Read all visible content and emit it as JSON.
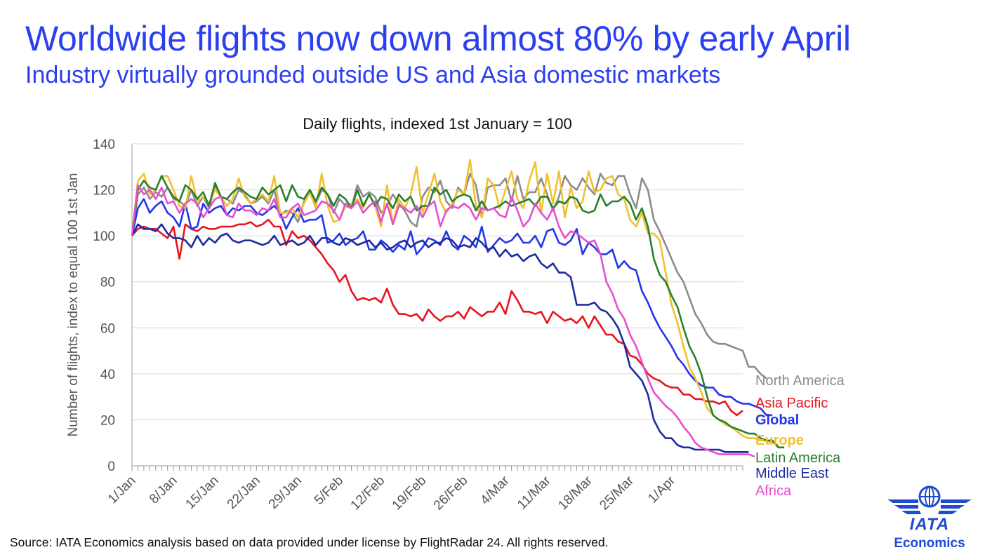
{
  "header": {
    "title": "Worldwide flights now down almost 80% by early April",
    "subtitle": "Industry virtually grounded outside US and Asia domestic markets"
  },
  "footer": {
    "source": "Source: IATA Economics analysis based on data provided under license by FlightRadar 24. All rights reserved."
  },
  "logo": {
    "name": "IATA",
    "sub": "Economics",
    "color": "#1f4bd1"
  },
  "chart_data": {
    "type": "line",
    "title": "Daily flights, indexed 1st January = 100",
    "xlabel": "",
    "ylabel": "Number of flights, index to equal 100 1st Jan",
    "ylim": [
      0,
      140
    ],
    "yticks": [
      0,
      20,
      40,
      60,
      80,
      100,
      120,
      140
    ],
    "grid": true,
    "legend": "right, labels at line ends",
    "x_tick_labels": [
      "1/Jan",
      "8/Jan",
      "15/Jan",
      "22/Jan",
      "29/Jan",
      "5/Feb",
      "12/Feb",
      "19/Feb",
      "26/Feb",
      "4/Mar",
      "11/Mar",
      "18/Mar",
      "25/Mar",
      "1/Apr"
    ],
    "x_start": "1 Jan",
    "x_days": 104,
    "series": [
      {
        "name": "North America",
        "color": "#8c8c8c",
        "values": [
          100,
          118,
          121,
          116,
          119,
          117,
          121,
          116,
          115,
          113,
          120,
          113,
          117,
          112,
          122,
          117,
          116,
          114,
          120,
          118,
          114,
          115,
          117,
          114,
          120,
          109,
          111,
          110,
          106,
          115,
          119,
          114,
          120,
          118,
          110,
          116,
          113,
          112,
          122,
          117,
          119,
          117,
          110,
          113,
          118,
          114,
          111,
          106,
          104,
          117,
          121,
          119,
          124,
          115,
          112,
          121,
          118,
          127,
          122,
          108,
          121,
          122,
          122,
          125,
          115,
          126,
          116,
          119,
          119,
          125,
          118,
          111,
          117,
          126,
          122,
          120,
          125,
          121,
          118,
          127,
          123,
          122,
          126,
          126,
          118,
          112,
          125,
          120,
          107,
          102,
          96,
          90,
          84,
          80,
          73,
          66,
          62,
          57,
          54,
          53,
          53,
          52,
          51,
          50,
          43,
          43,
          40,
          38
        ]
      },
      {
        "name": "Asia Pacific",
        "color": "#e8141e",
        "values": [
          100,
          103,
          104,
          103,
          103,
          101,
          99,
          104,
          90,
          105,
          103,
          102,
          104,
          103,
          103,
          104,
          104,
          104,
          105,
          105,
          106,
          104,
          105,
          107,
          104,
          104,
          96,
          102,
          99,
          100,
          98,
          95,
          92,
          88,
          85,
          80,
          83,
          76,
          72,
          73,
          72,
          73,
          71,
          77,
          70,
          66,
          66,
          65,
          66,
          63,
          68,
          65,
          63,
          65,
          65,
          67,
          64,
          69,
          67,
          65,
          67,
          67,
          71,
          66,
          76,
          72,
          67,
          67,
          66,
          67,
          62,
          67,
          65,
          63,
          64,
          62,
          65,
          60,
          65,
          61,
          57,
          57,
          54,
          53,
          48,
          47,
          44,
          40,
          38,
          37,
          35,
          34,
          34,
          31,
          31,
          29,
          29,
          28,
          28,
          27,
          28,
          24,
          22,
          24
        ]
      },
      {
        "name": "Global",
        "color": "#2436e8",
        "values": [
          100,
          112,
          116,
          110,
          113,
          115,
          110,
          108,
          104,
          114,
          103,
          104,
          114,
          110,
          112,
          113,
          109,
          112,
          111,
          113,
          113,
          110,
          109,
          111,
          113,
          110,
          103,
          108,
          112,
          106,
          107,
          107,
          109,
          97,
          98,
          101,
          96,
          98,
          99,
          102,
          94,
          94,
          98,
          96,
          93,
          96,
          94,
          102,
          92,
          95,
          99,
          98,
          96,
          102,
          96,
          94,
          100,
          98,
          95,
          104,
          93,
          96,
          99,
          97,
          98,
          101,
          97,
          97,
          100,
          95,
          102,
          103,
          97,
          96,
          98,
          103,
          92,
          97,
          95,
          92,
          92,
          94,
          86,
          89,
          86,
          85,
          76,
          71,
          65,
          60,
          56,
          52,
          47,
          44,
          40,
          37,
          35,
          34,
          34,
          31,
          30,
          30,
          28,
          27,
          27,
          26,
          25,
          22,
          22
        ]
      },
      {
        "name": "Europe",
        "color": "#f2c12e",
        "values": [
          100,
          124,
          127,
          118,
          120,
          126,
          126,
          120,
          113,
          112,
          126,
          115,
          117,
          114,
          120,
          117,
          113,
          116,
          125,
          117,
          114,
          116,
          118,
          115,
          126,
          110,
          110,
          112,
          108,
          114,
          119,
          112,
          127,
          113,
          106,
          107,
          113,
          114,
          116,
          112,
          118,
          113,
          104,
          122,
          105,
          116,
          112,
          118,
          130,
          110,
          118,
          127,
          115,
          110,
          114,
          120,
          118,
          133,
          113,
          108,
          125,
          122,
          112,
          120,
          128,
          116,
          112,
          124,
          132,
          110,
          127,
          114,
          128,
          108,
          121,
          112,
          115,
          128,
          119,
          120,
          125,
          126,
          118,
          116,
          107,
          104,
          110,
          101,
          101,
          98,
          84,
          70,
          62,
          52,
          43,
          38,
          32,
          25,
          22,
          20,
          18,
          17,
          15,
          13,
          12,
          12,
          11,
          11,
          10,
          9
        ]
      },
      {
        "name": "Latin America",
        "color": "#2a7f2e",
        "values": [
          100,
          120,
          124,
          121,
          120,
          126,
          121,
          117,
          115,
          122,
          120,
          116,
          119,
          113,
          123,
          117,
          116,
          119,
          121,
          119,
          117,
          116,
          121,
          118,
          120,
          122,
          115,
          122,
          117,
          116,
          120,
          115,
          121,
          118,
          113,
          118,
          116,
          112,
          120,
          113,
          118,
          113,
          117,
          116,
          112,
          118,
          115,
          117,
          111,
          113,
          113,
          121,
          118,
          120,
          115,
          117,
          118,
          117,
          111,
          115,
          111,
          112,
          113,
          115,
          113,
          114,
          115,
          116,
          113,
          117,
          117,
          112,
          115,
          114,
          117,
          116,
          111,
          110,
          111,
          118,
          113,
          115,
          115,
          117,
          114,
          107,
          112,
          104,
          90,
          83,
          80,
          74,
          69,
          60,
          52,
          47,
          40,
          30,
          22,
          20,
          19,
          17,
          16,
          15,
          14,
          14,
          12,
          11,
          11,
          8,
          8
        ]
      },
      {
        "name": "Middle East",
        "color": "#1c2aa0",
        "values": [
          100,
          105,
          103,
          103,
          102,
          105,
          101,
          99,
          99,
          98,
          95,
          100,
          96,
          99,
          97,
          100,
          101,
          98,
          97,
          98,
          98,
          97,
          96,
          97,
          100,
          96,
          97,
          98,
          96,
          97,
          100,
          96,
          99,
          99,
          97,
          96,
          99,
          98,
          96,
          97,
          98,
          95,
          97,
          94,
          95,
          97,
          98,
          95,
          97,
          98,
          95,
          97,
          97,
          99,
          98,
          95,
          96,
          95,
          99,
          97,
          94,
          95,
          91,
          94,
          91,
          92,
          89,
          91,
          92,
          88,
          86,
          88,
          84,
          84,
          82,
          70,
          70,
          70,
          71,
          68,
          67,
          64,
          60,
          53,
          43,
          40,
          37,
          31,
          20,
          15,
          12,
          12,
          9,
          8,
          8,
          7,
          7,
          7,
          7,
          7,
          6,
          6,
          6,
          6,
          6
        ]
      },
      {
        "name": "Africa",
        "color": "#e64fd0",
        "values": [
          100,
          122,
          118,
          120,
          116,
          121,
          114,
          115,
          110,
          114,
          116,
          114,
          108,
          112,
          116,
          117,
          109,
          108,
          114,
          111,
          111,
          109,
          112,
          111,
          116,
          108,
          108,
          112,
          114,
          109,
          110,
          111,
          115,
          114,
          111,
          107,
          114,
          112,
          115,
          110,
          113,
          115,
          106,
          114,
          105,
          113,
          112,
          110,
          113,
          108,
          113,
          115,
          104,
          111,
          113,
          112,
          114,
          112,
          107,
          112,
          111,
          112,
          109,
          108,
          117,
          111,
          104,
          107,
          114,
          110,
          107,
          112,
          104,
          99,
          102,
          101,
          99,
          97,
          98,
          92,
          80,
          75,
          68,
          64,
          57,
          52,
          45,
          38,
          32,
          29,
          26,
          24,
          21,
          17,
          14,
          10,
          8,
          7,
          6,
          5,
          5,
          5,
          5,
          5,
          5,
          4
        ]
      }
    ]
  }
}
